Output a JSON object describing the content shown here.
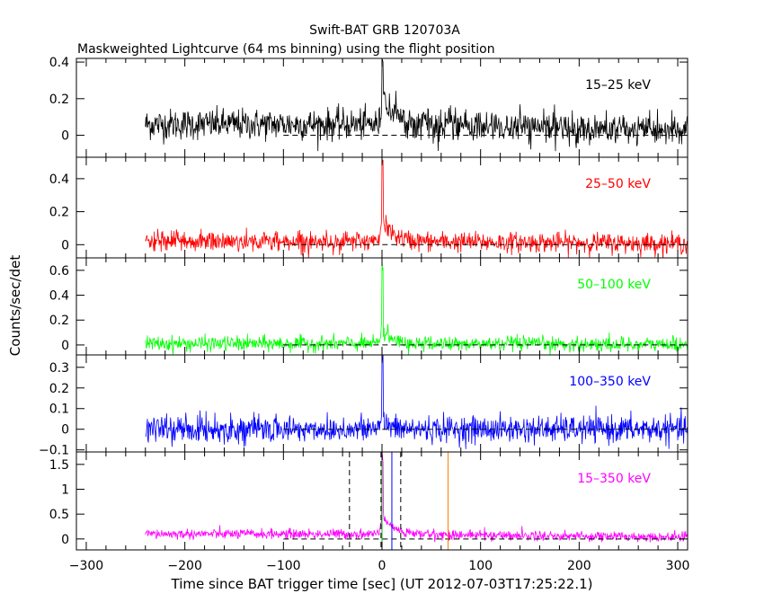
{
  "title": "Swift-BAT GRB 120703A",
  "subtitle": "Maskweighted Lightcurve (64 ms binning) using the flight position",
  "xlabel": "Time since BAT trigger time [sec] (UT 2012-07-03T17:25:22.1)",
  "ylabel": "Counts/sec/det",
  "chart_data": {
    "type": "line",
    "xlim": [
      -310,
      310
    ],
    "x_ticks": [
      -300,
      -200,
      -100,
      0,
      100,
      200,
      300
    ],
    "data_start": -240,
    "panels": [
      {
        "label": "15–25 keV",
        "color": "#000000",
        "ylim": [
          -0.12,
          0.42
        ],
        "y_ticks": [
          0,
          0.2,
          0.4
        ],
        "y_tick_labels": [
          "0",
          "0.2",
          "0.4"
        ],
        "noise_sigma": 0.042,
        "baseline": 0.06,
        "peak": 0.42,
        "tail_amp": 0.14,
        "tail_tau": 12
      },
      {
        "label": "25–50 keV",
        "color": "#ff0000",
        "ylim": [
          -0.08,
          0.53
        ],
        "y_ticks": [
          0,
          0.2,
          0.4
        ],
        "y_tick_labels": [
          "0",
          "0.2",
          "0.4"
        ],
        "noise_sigma": 0.03,
        "baseline": 0.02,
        "peak": 0.53,
        "tail_amp": 0.12,
        "tail_tau": 10
      },
      {
        "label": "50–100 keV",
        "color": "#00ff00",
        "ylim": [
          -0.08,
          0.7
        ],
        "y_ticks": [
          0,
          0.2,
          0.4,
          0.6
        ],
        "y_tick_labels": [
          "0",
          "0.2",
          "0.4",
          "0.6"
        ],
        "noise_sigma": 0.03,
        "baseline": 0.01,
        "peak": 0.7,
        "tail_amp": 0.1,
        "tail_tau": 8
      },
      {
        "label": "100–350 keV",
        "color": "#0000ff",
        "ylim": [
          -0.11,
          0.36
        ],
        "y_ticks": [
          -0.1,
          0,
          0.1,
          0.2,
          0.3
        ],
        "y_tick_labels": [
          "−0.1",
          "0",
          "0.1",
          "0.2",
          "0.3"
        ],
        "noise_sigma": 0.032,
        "baseline": 0.0,
        "peak": 0.36,
        "tail_amp": 0.04,
        "tail_tau": 6
      },
      {
        "label": "15–350 keV",
        "color": "#ff00ff",
        "ylim": [
          -0.22,
          1.75
        ],
        "y_ticks": [
          0,
          0.5,
          1,
          1.5
        ],
        "y_tick_labels": [
          "0",
          "0.5",
          "1",
          "1.5"
        ],
        "noise_sigma": 0.05,
        "baseline": 0.1,
        "peak": 1.75,
        "tail_amp": 0.35,
        "tail_tau": 10
      }
    ],
    "markers": [
      {
        "x": -33,
        "style": "dashed",
        "color": "#000000"
      },
      {
        "x": -1,
        "style": "dashed",
        "color": "#000000"
      },
      {
        "x": 0,
        "style": "solid",
        "color": "#00c000"
      },
      {
        "x": 10,
        "style": "solid",
        "color": "#0000ff"
      },
      {
        "x": 19,
        "style": "dashed",
        "color": "#000000"
      },
      {
        "x": 67,
        "style": "solid",
        "color": "#ff8000"
      }
    ]
  }
}
